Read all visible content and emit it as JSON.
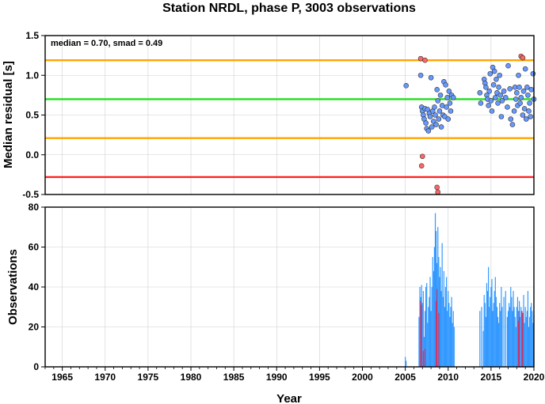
{
  "chart_data": [
    {
      "type": "scatter",
      "title": "Station NRDL, phase P, 3003 observations",
      "xlabel": "",
      "ylabel": "Median residual [s]",
      "xlim": [
        1963,
        2020
      ],
      "ylim": [
        -0.5,
        1.5
      ],
      "yticks": [
        "-0.5",
        "0.0",
        "0.5",
        "1.0",
        "1.5"
      ],
      "annotation": "median = 0.70, smad = 0.49",
      "grid": true,
      "lines": [
        {
          "y": 1.19,
          "color": "#ffa500"
        },
        {
          "y": 0.7,
          "color": "#22dd22"
        },
        {
          "y": 0.21,
          "color": "#ffa500"
        },
        {
          "y": -0.28,
          "color": "#ff2222"
        }
      ],
      "series": [
        {
          "color": "#6699ff",
          "points": [
            [
              2005.1,
              0.87
            ],
            [
              2006.8,
              1.0
            ],
            [
              2006.9,
              0.6
            ],
            [
              2007.0,
              0.55
            ],
            [
              2007.1,
              0.5
            ],
            [
              2007.2,
              0.45
            ],
            [
              2007.3,
              0.58
            ],
            [
              2007.4,
              0.4
            ],
            [
              2007.5,
              0.33
            ],
            [
              2007.6,
              0.57
            ],
            [
              2007.7,
              0.3
            ],
            [
              2007.8,
              0.52
            ],
            [
              2007.9,
              0.48
            ],
            [
              2008.0,
              0.97
            ],
            [
              2008.1,
              0.35
            ],
            [
              2008.2,
              0.55
            ],
            [
              2008.3,
              0.42
            ],
            [
              2008.4,
              0.6
            ],
            [
              2008.5,
              0.5
            ],
            [
              2008.6,
              0.38
            ],
            [
              2008.7,
              0.82
            ],
            [
              2008.8,
              0.68
            ],
            [
              2008.9,
              0.45
            ],
            [
              2009.0,
              0.55
            ],
            [
              2009.1,
              0.75
            ],
            [
              2009.2,
              0.35
            ],
            [
              2009.3,
              0.62
            ],
            [
              2009.4,
              0.5
            ],
            [
              2009.5,
              0.92
            ],
            [
              2009.6,
              0.48
            ],
            [
              2009.7,
              0.88
            ],
            [
              2009.8,
              0.6
            ],
            [
              2009.9,
              0.72
            ],
            [
              2010.0,
              0.45
            ],
            [
              2010.1,
              0.8
            ],
            [
              2010.2,
              0.65
            ],
            [
              2010.3,
              0.55
            ],
            [
              2010.4,
              0.75
            ],
            [
              2010.6,
              0.72
            ],
            [
              2013.7,
              0.78
            ],
            [
              2013.8,
              0.65
            ],
            [
              2014.2,
              0.95
            ],
            [
              2014.3,
              0.9
            ],
            [
              2014.4,
              0.85
            ],
            [
              2014.5,
              0.75
            ],
            [
              2014.6,
              0.7
            ],
            [
              2014.7,
              0.62
            ],
            [
              2014.8,
              0.8
            ],
            [
              2014.9,
              1.02
            ],
            [
              2015.0,
              0.68
            ],
            [
              2015.1,
              0.55
            ],
            [
              2015.2,
              1.1
            ],
            [
              2015.3,
              0.88
            ],
            [
              2015.4,
              1.05
            ],
            [
              2015.5,
              0.72
            ],
            [
              2015.6,
              0.95
            ],
            [
              2015.7,
              0.78
            ],
            [
              2015.8,
              0.65
            ],
            [
              2015.9,
              0.85
            ],
            [
              2016.0,
              1.0
            ],
            [
              2016.1,
              0.75
            ],
            [
              2016.2,
              0.48
            ],
            [
              2016.3,
              0.68
            ],
            [
              2016.5,
              0.8
            ],
            [
              2016.7,
              0.72
            ],
            [
              2016.9,
              0.6
            ],
            [
              2017.0,
              1.12
            ],
            [
              2017.2,
              0.83
            ],
            [
              2017.3,
              0.45
            ],
            [
              2017.5,
              0.38
            ],
            [
              2017.7,
              0.55
            ],
            [
              2017.8,
              0.85
            ],
            [
              2017.9,
              0.7
            ],
            [
              2018.0,
              0.78
            ],
            [
              2018.1,
              0.62
            ],
            [
              2018.2,
              1.0
            ],
            [
              2018.3,
              0.85
            ],
            [
              2018.4,
              0.65
            ],
            [
              2018.5,
              0.72
            ],
            [
              2018.7,
              0.5
            ],
            [
              2018.8,
              0.8
            ],
            [
              2018.9,
              0.58
            ],
            [
              2019.0,
              1.08
            ],
            [
              2019.1,
              0.45
            ],
            [
              2019.2,
              0.85
            ],
            [
              2019.3,
              0.75
            ],
            [
              2019.4,
              0.55
            ],
            [
              2019.5,
              0.65
            ],
            [
              2019.6,
              0.48
            ],
            [
              2019.7,
              0.82
            ],
            [
              2019.9,
              1.02
            ],
            [
              2020.0,
              0.7
            ]
          ]
        },
        {
          "color": "#ff6666",
          "points": [
            [
              2006.8,
              1.21
            ],
            [
              2007.3,
              1.19
            ],
            [
              2007.0,
              -0.02
            ],
            [
              2006.9,
              -0.14
            ],
            [
              2008.7,
              -0.41
            ],
            [
              2008.8,
              -0.47
            ],
            [
              2018.5,
              1.24
            ],
            [
              2018.7,
              1.22
            ]
          ]
        }
      ]
    },
    {
      "type": "bar",
      "title": "",
      "xlabel": "Year",
      "ylabel": "Observations",
      "xlim": [
        1963,
        2020
      ],
      "ylim": [
        0,
        80
      ],
      "xticks": [
        "1965",
        "1970",
        "1975",
        "1980",
        "1985",
        "1990",
        "1995",
        "2000",
        "2005",
        "2010",
        "2015",
        "2020"
      ],
      "yticks": [
        "0",
        "20",
        "40",
        "60",
        "80"
      ],
      "grid": true,
      "series": [
        {
          "color": "#3399ff",
          "x": [
            2005.0,
            2005.1,
            2006.6,
            2006.7,
            2006.8,
            2006.9,
            2007.0,
            2007.1,
            2007.2,
            2007.3,
            2007.4,
            2007.5,
            2007.6,
            2007.7,
            2007.8,
            2007.9,
            2008.0,
            2008.1,
            2008.2,
            2008.3,
            2008.4,
            2008.5,
            2008.6,
            2008.7,
            2008.8,
            2008.9,
            2009.0,
            2009.1,
            2009.2,
            2009.3,
            2009.4,
            2009.5,
            2009.6,
            2009.7,
            2009.8,
            2009.9,
            2010.0,
            2010.1,
            2010.2,
            2010.3,
            2010.4,
            2010.5,
            2010.6,
            2010.7,
            2013.7,
            2013.9,
            2014.1,
            2014.2,
            2014.3,
            2014.4,
            2014.5,
            2014.6,
            2014.7,
            2014.8,
            2014.9,
            2015.0,
            2015.1,
            2015.2,
            2015.3,
            2015.4,
            2015.5,
            2015.6,
            2015.7,
            2015.8,
            2015.9,
            2016.0,
            2016.1,
            2016.2,
            2016.3,
            2016.5,
            2016.7,
            2016.9,
            2017.0,
            2017.1,
            2017.2,
            2017.3,
            2017.4,
            2017.5,
            2017.6,
            2017.7,
            2017.8,
            2017.9,
            2018.0,
            2018.1,
            2018.2,
            2018.3,
            2018.4,
            2018.5,
            2018.6,
            2018.7,
            2018.8,
            2018.9,
            2019.0,
            2019.1,
            2019.2,
            2019.3,
            2019.4,
            2019.5,
            2019.6,
            2019.7,
            2019.8,
            2019.9,
            2020.0
          ],
          "values": [
            5,
            3,
            25,
            40,
            35,
            41,
            32,
            38,
            15,
            28,
            40,
            42,
            22,
            30,
            35,
            45,
            28,
            40,
            55,
            48,
            60,
            77,
            68,
            52,
            70,
            55,
            45,
            50,
            38,
            62,
            35,
            48,
            30,
            40,
            45,
            28,
            38,
            32,
            25,
            30,
            35,
            22,
            28,
            20,
            28,
            30,
            18,
            36,
            32,
            25,
            42,
            38,
            50,
            30,
            35,
            40,
            44,
            28,
            32,
            38,
            45,
            35,
            30,
            25,
            22,
            32,
            28,
            40,
            30,
            35,
            38,
            25,
            28,
            32,
            30,
            40,
            35,
            28,
            38,
            30,
            25,
            20,
            30,
            35,
            28,
            33,
            25,
            30,
            28,
            27,
            36,
            22,
            30,
            25,
            28,
            38,
            20,
            25,
            30,
            32,
            28,
            22,
            26
          ]
        },
        {
          "color": "#cc3366",
          "x": [
            2006.8,
            2006.9,
            2007.1,
            2007.3,
            2008.6,
            2008.7,
            2008.9,
            2018.2,
            2018.3,
            2018.6,
            2018.7
          ],
          "values": [
            33,
            31,
            8,
            9,
            33,
            39,
            27,
            23,
            28,
            28,
            27
          ]
        }
      ]
    }
  ]
}
